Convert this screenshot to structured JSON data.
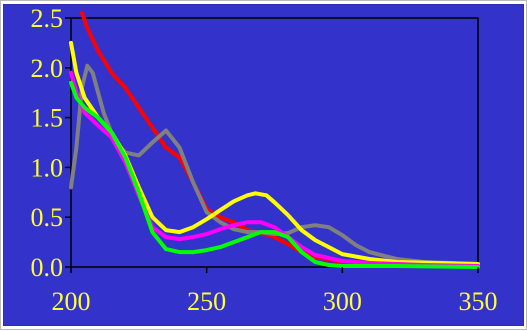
{
  "colors": {
    "background": "#3333cc",
    "tick_text": "#ffff33",
    "axes": "#000000"
  },
  "chart_data": {
    "type": "line",
    "title": "",
    "xlabel": "",
    "ylabel": "",
    "xlim": [
      200,
      350
    ],
    "ylim": [
      0,
      2.5
    ],
    "grid": false,
    "legend": "none",
    "x_ticks": [
      "200",
      "250",
      "300",
      "350"
    ],
    "y_ticks": [
      "0.0",
      "0.5",
      "1.0",
      "1.5",
      "2.0",
      "2.5"
    ],
    "series": [
      {
        "color": "#ff0000",
        "points": [
          [
            204,
            2.55
          ],
          [
            206,
            2.4
          ],
          [
            210,
            2.17
          ],
          [
            215,
            1.95
          ],
          [
            220,
            1.8
          ],
          [
            225,
            1.6
          ],
          [
            230,
            1.4
          ],
          [
            235,
            1.2
          ],
          [
            240,
            1.1
          ],
          [
            245,
            0.85
          ],
          [
            250,
            0.58
          ],
          [
            255,
            0.5
          ],
          [
            260,
            0.45
          ],
          [
            265,
            0.37
          ],
          [
            270,
            0.34
          ],
          [
            275,
            0.3
          ],
          [
            280,
            0.23
          ],
          [
            285,
            0.15
          ],
          [
            290,
            0.1
          ],
          [
            300,
            0.05
          ],
          [
            320,
            0.02
          ],
          [
            350,
            0.01
          ]
        ]
      },
      {
        "color": "#808080",
        "points": [
          [
            200,
            0.8
          ],
          [
            202,
            1.2
          ],
          [
            204,
            1.8
          ],
          [
            206,
            2.02
          ],
          [
            208,
            1.95
          ],
          [
            212,
            1.55
          ],
          [
            216,
            1.27
          ],
          [
            220,
            1.15
          ],
          [
            225,
            1.12
          ],
          [
            230,
            1.25
          ],
          [
            235,
            1.37
          ],
          [
            240,
            1.2
          ],
          [
            245,
            0.85
          ],
          [
            250,
            0.55
          ],
          [
            255,
            0.45
          ],
          [
            260,
            0.38
          ],
          [
            265,
            0.35
          ],
          [
            270,
            0.35
          ],
          [
            275,
            0.33
          ],
          [
            280,
            0.34
          ],
          [
            285,
            0.4
          ],
          [
            290,
            0.42
          ],
          [
            295,
            0.4
          ],
          [
            300,
            0.32
          ],
          [
            305,
            0.22
          ],
          [
            310,
            0.15
          ],
          [
            320,
            0.08
          ],
          [
            330,
            0.05
          ],
          [
            350,
            0.03
          ]
        ]
      },
      {
        "color": "#ffff00",
        "points": [
          [
            200,
            2.25
          ],
          [
            202,
            1.95
          ],
          [
            205,
            1.7
          ],
          [
            210,
            1.5
          ],
          [
            215,
            1.35
          ],
          [
            220,
            1.12
          ],
          [
            225,
            0.8
          ],
          [
            230,
            0.5
          ],
          [
            235,
            0.37
          ],
          [
            240,
            0.35
          ],
          [
            245,
            0.4
          ],
          [
            250,
            0.48
          ],
          [
            255,
            0.57
          ],
          [
            260,
            0.66
          ],
          [
            265,
            0.72
          ],
          [
            268,
            0.74
          ],
          [
            272,
            0.72
          ],
          [
            275,
            0.65
          ],
          [
            280,
            0.52
          ],
          [
            285,
            0.37
          ],
          [
            290,
            0.27
          ],
          [
            295,
            0.2
          ],
          [
            300,
            0.13
          ],
          [
            310,
            0.08
          ],
          [
            320,
            0.05
          ],
          [
            335,
            0.04
          ],
          [
            350,
            0.03
          ]
        ]
      },
      {
        "color": "#ff00ff",
        "points": [
          [
            200,
            1.95
          ],
          [
            202,
            1.75
          ],
          [
            205,
            1.55
          ],
          [
            210,
            1.42
          ],
          [
            215,
            1.3
          ],
          [
            220,
            1.05
          ],
          [
            225,
            0.72
          ],
          [
            230,
            0.4
          ],
          [
            235,
            0.3
          ],
          [
            240,
            0.28
          ],
          [
            245,
            0.3
          ],
          [
            250,
            0.33
          ],
          [
            255,
            0.38
          ],
          [
            260,
            0.42
          ],
          [
            265,
            0.45
          ],
          [
            270,
            0.45
          ],
          [
            275,
            0.4
          ],
          [
            280,
            0.3
          ],
          [
            285,
            0.2
          ],
          [
            290,
            0.12
          ],
          [
            300,
            0.06
          ],
          [
            310,
            0.04
          ],
          [
            330,
            0.02
          ],
          [
            350,
            0.01
          ]
        ]
      },
      {
        "color": "#00ff00",
        "points": [
          [
            200,
            1.85
          ],
          [
            202,
            1.7
          ],
          [
            205,
            1.6
          ],
          [
            210,
            1.5
          ],
          [
            215,
            1.35
          ],
          [
            220,
            1.1
          ],
          [
            225,
            0.75
          ],
          [
            230,
            0.35
          ],
          [
            235,
            0.18
          ],
          [
            240,
            0.15
          ],
          [
            245,
            0.15
          ],
          [
            250,
            0.17
          ],
          [
            255,
            0.2
          ],
          [
            260,
            0.25
          ],
          [
            265,
            0.3
          ],
          [
            270,
            0.35
          ],
          [
            275,
            0.35
          ],
          [
            280,
            0.3
          ],
          [
            285,
            0.15
          ],
          [
            290,
            0.05
          ],
          [
            295,
            0.02
          ],
          [
            300,
            0.01
          ],
          [
            320,
            0.01
          ],
          [
            350,
            0.0
          ]
        ]
      }
    ]
  }
}
